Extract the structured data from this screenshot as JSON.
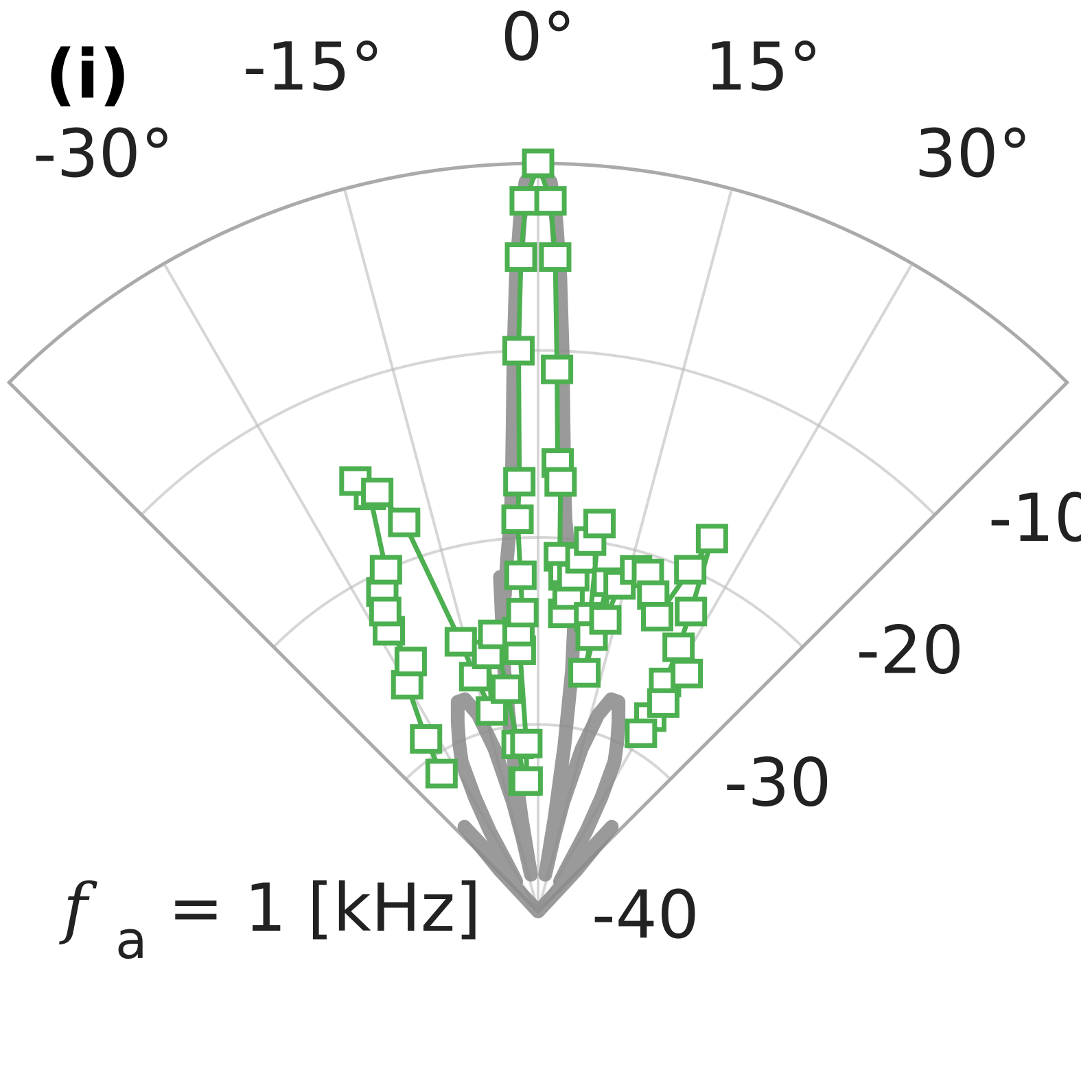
{
  "chart_data": {
    "type": "polar-line",
    "panel_label": "(i)",
    "theta_range_deg": [
      -45,
      45
    ],
    "r_range_db": [
      -40,
      0
    ],
    "theta_ticks": [
      {
        "value": -30,
        "label": "-30°"
      },
      {
        "value": -15,
        "label": "-15°"
      },
      {
        "value": 0,
        "label": "0°"
      },
      {
        "value": 15,
        "label": "15°"
      },
      {
        "value": 30,
        "label": "30°"
      }
    ],
    "r_ticks": [
      {
        "value": -10,
        "label": "-10"
      },
      {
        "value": -20,
        "label": "-20"
      },
      {
        "value": -30,
        "label": "-30"
      },
      {
        "value": -40,
        "label": "-40"
      }
    ],
    "grid": true,
    "annotation": {
      "f": "f",
      "sub": "a",
      "rest": " = 1 [kHz]"
    },
    "colors": {
      "measured": "#4caf50",
      "simulated": "#888888",
      "grid": "#bbbbbb"
    },
    "series": [
      {
        "style": "simulated",
        "points": [
          [
            -45,
            -40
          ],
          [
            -43,
            -37
          ],
          [
            -41,
            -34
          ],
          [
            -40,
            -36
          ],
          [
            -38,
            -38
          ],
          [
            -36,
            -38
          ],
          [
            -33,
            -37
          ],
          [
            -31,
            -35
          ],
          [
            -29,
            -33
          ],
          [
            -27,
            -31
          ],
          [
            -25,
            -30
          ],
          [
            -23,
            -29
          ],
          [
            -21,
            -28
          ],
          [
            -19,
            -28
          ],
          [
            -17,
            -29
          ],
          [
            -15,
            -31
          ],
          [
            -13,
            -34
          ],
          [
            -12,
            -36
          ],
          [
            -11,
            -38
          ],
          [
            -10,
            -35
          ],
          [
            -9,
            -31
          ],
          [
            -8,
            -27
          ],
          [
            -7,
            -24
          ],
          [
            -6.5,
            -22
          ],
          [
            -6,
            -23
          ],
          [
            -5,
            -21
          ],
          [
            -4,
            -19
          ],
          [
            -3.5,
            -17
          ],
          [
            -3,
            -14
          ],
          [
            -2.5,
            -10
          ],
          [
            -2,
            -6
          ],
          [
            -1.5,
            -3
          ],
          [
            -1,
            -1
          ],
          [
            0,
            0
          ],
          [
            1,
            -1
          ],
          [
            1.5,
            -3
          ],
          [
            2,
            -6
          ],
          [
            2.5,
            -10
          ],
          [
            3,
            -14
          ],
          [
            3.5,
            -17
          ],
          [
            4,
            -19
          ],
          [
            5,
            -21
          ],
          [
            6,
            -23
          ],
          [
            6.5,
            -22
          ],
          [
            7,
            -24
          ],
          [
            8,
            -27
          ],
          [
            9,
            -31
          ],
          [
            10,
            -35
          ],
          [
            11,
            -38
          ],
          [
            12,
            -36
          ],
          [
            13,
            -34
          ],
          [
            15,
            -31
          ],
          [
            17,
            -29
          ],
          [
            19,
            -28
          ],
          [
            21,
            -28
          ],
          [
            23,
            -29
          ],
          [
            25,
            -30
          ],
          [
            27,
            -31
          ],
          [
            29,
            -33
          ],
          [
            31,
            -35
          ],
          [
            33,
            -37
          ],
          [
            36,
            -38
          ],
          [
            38,
            -38
          ],
          [
            40,
            -36
          ],
          [
            41,
            -34
          ],
          [
            43,
            -37
          ],
          [
            45,
            -40
          ]
        ]
      },
      {
        "style": "measured",
        "marker": "square",
        "points": [
          [
            -35,
            -31
          ],
          [
            -33,
            -29
          ],
          [
            -30,
            -26
          ],
          [
            -27,
            -25
          ],
          [
            -28,
            -23
          ],
          [
            -26,
            -21
          ],
          [
            -27,
            -22
          ],
          [
            -24,
            -20
          ],
          [
            -22,
            -16
          ],
          [
            -23,
            -15
          ],
          [
            -21,
            -16
          ],
          [
            -19,
            -18
          ],
          [
            -16,
            -25
          ],
          [
            -15,
            -27
          ],
          [
            -13,
            -29
          ],
          [
            -11,
            -26
          ],
          [
            -9,
            -25
          ],
          [
            -8,
            -28
          ],
          [
            -7,
            -31
          ],
          [
            -6,
            -33
          ],
          [
            -5,
            -33
          ],
          [
            -4,
            -31
          ],
          [
            -4,
            -26
          ],
          [
            -4,
            -25
          ],
          [
            -3,
            -24
          ],
          [
            -3,
            -22
          ],
          [
            -3,
            -19
          ],
          [
            -2.5,
            -17
          ],
          [
            -2,
            -10
          ],
          [
            -1.5,
            -5
          ],
          [
            -1,
            -2
          ],
          [
            0,
            0
          ],
          [
            1,
            -2
          ],
          [
            1.5,
            -5
          ],
          [
            2,
            -11
          ],
          [
            2.5,
            -16
          ],
          [
            3,
            -17
          ],
          [
            3.5,
            -21
          ],
          [
            4.5,
            -22
          ],
          [
            5,
            -24
          ],
          [
            5.5,
            -23
          ],
          [
            6,
            -22
          ],
          [
            7,
            -21
          ],
          [
            8,
            -20
          ],
          [
            9,
            -19
          ],
          [
            10,
            -24
          ],
          [
            11,
            -25
          ],
          [
            11,
            -27
          ],
          [
            12,
            -22
          ],
          [
            13,
            -24
          ],
          [
            14,
            -22
          ],
          [
            16,
            -21
          ],
          [
            18,
            -21
          ],
          [
            20,
            -22
          ],
          [
            22,
            -23
          ],
          [
            24,
            -20
          ],
          [
            25,
            -18
          ],
          [
            27,
            -22
          ],
          [
            28,
            -24
          ],
          [
            29,
            -26
          ],
          [
            30,
            -28
          ],
          [
            31,
            -27
          ],
          [
            32,
            -25
          ],
          [
            30,
            -29
          ]
        ]
      }
    ]
  }
}
